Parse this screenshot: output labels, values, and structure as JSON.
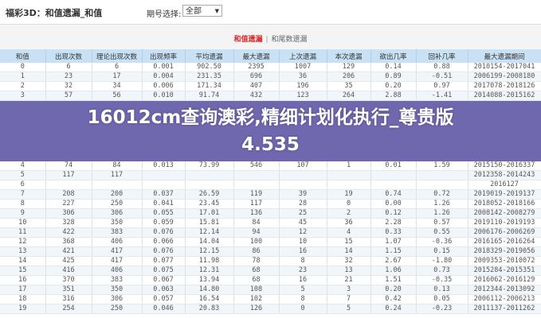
{
  "header": {
    "title": "福彩3D：和值遗漏_和值",
    "period_label": "期号选择:",
    "period_value": "全部"
  },
  "tabs": [
    {
      "label": "和值遗漏",
      "active": true
    },
    {
      "label": "和尾数遗漏",
      "active": false
    }
  ],
  "table": {
    "columns": [
      "和值",
      "出现次数",
      "理论出现次数",
      "出现频率",
      "平均遗漏",
      "最大遗漏",
      "上次遗漏",
      "本次遗漏",
      "欲出几率",
      "回补几率",
      "最大遗漏期间"
    ],
    "rows": [
      [
        "0",
        "6",
        "6",
        "0.001",
        "902.50",
        "2395",
        "1007",
        "129",
        "0.14",
        "0.88",
        "2010154-2017041"
      ],
      [
        "1",
        "23",
        "17",
        "0.004",
        "231.35",
        "696",
        "36",
        "206",
        "0.89",
        "-0.51",
        "2006199-2008180"
      ],
      [
        "2",
        "32",
        "34",
        "0.006",
        "171.34",
        "407",
        "196",
        "35",
        "0.20",
        "0.97",
        "2017078-2018126"
      ],
      [
        "3",
        "57",
        "56",
        "0.010",
        "91.74",
        "432",
        "123",
        "264",
        "2.88",
        "-1.41",
        "2014088-2015162"
      ],
      [
        "4",
        "74",
        "84",
        "0.013",
        "73.99",
        "546",
        "107",
        "1",
        "0.01",
        "1.59",
        "2015150-2016337"
      ],
      [
        "5",
        "117",
        "117",
        "",
        "",
        "",
        "",
        "",
        "",
        "",
        "2012358-2014243"
      ],
      [
        "6",
        "",
        "",
        "",
        "",
        "",
        "",
        "",
        "",
        "",
        "2016127"
      ],
      [
        "7",
        "208",
        "200",
        "0.037",
        "26.59",
        "119",
        "39",
        "19",
        "0.74",
        "0.72",
        "2019019-2019137"
      ],
      [
        "8",
        "227",
        "250",
        "0.041",
        "23.45",
        "117",
        "28",
        "0",
        "0.00",
        "1.26",
        "2018052-2018166"
      ],
      [
        "9",
        "306",
        "306",
        "0.055",
        "17.01",
        "136",
        "25",
        "2",
        "0.12",
        "1.26",
        "2008142-2008279"
      ],
      [
        "10",
        "328",
        "350",
        "0.059",
        "15.81",
        "84",
        "45",
        "36",
        "2.28",
        "0.57",
        "2019110-2019193"
      ],
      [
        "11",
        "422",
        "383",
        "0.076",
        "12.14",
        "94",
        "12",
        "4",
        "0.33",
        "0.55",
        "2006176-2006269"
      ],
      [
        "12",
        "368",
        "406",
        "0.066",
        "14.04",
        "100",
        "10",
        "15",
        "1.07",
        "-0.36",
        "2016165-2016264"
      ],
      [
        "13",
        "421",
        "417",
        "0.076",
        "12.15",
        "86",
        "16",
        "14",
        "1.15",
        "0.15",
        "2018329-2019056"
      ],
      [
        "14",
        "425",
        "417",
        "0.077",
        "11.98",
        "78",
        "8",
        "32",
        "2.67",
        "-1.80",
        "2009353-2010072"
      ],
      [
        "15",
        "416",
        "406",
        "0.075",
        "12.31",
        "68",
        "23",
        "13",
        "1.06",
        "0.73",
        "2015284-2015351"
      ],
      [
        "16",
        "370",
        "383",
        "0.067",
        "13.94",
        "68",
        "16",
        "21",
        "1.51",
        "-0.35",
        "2016062-2016129"
      ],
      [
        "17",
        "351",
        "350",
        "0.063",
        "14.80",
        "108",
        "5",
        "3",
        "0.20",
        "0.13",
        "2012344-2013092"
      ],
      [
        "18",
        "316",
        "306",
        "0.057",
        "16.54",
        "102",
        "8",
        "7",
        "0.42",
        "0.05",
        "2006112-2006213"
      ],
      [
        "19",
        "254",
        "250",
        "0.046",
        "20.83",
        "126",
        "0",
        "5",
        "0.24",
        "-0.23",
        "2011137-2011262"
      ]
    ]
  },
  "overlay": {
    "line1": "16012cm查询澳彩,精细计划化执行_尊贵版",
    "line2": "4.535"
  },
  "colors": {
    "header_bg": "#c9e1f5",
    "active_tab": "#dd2222",
    "overlay": "#7068af"
  }
}
